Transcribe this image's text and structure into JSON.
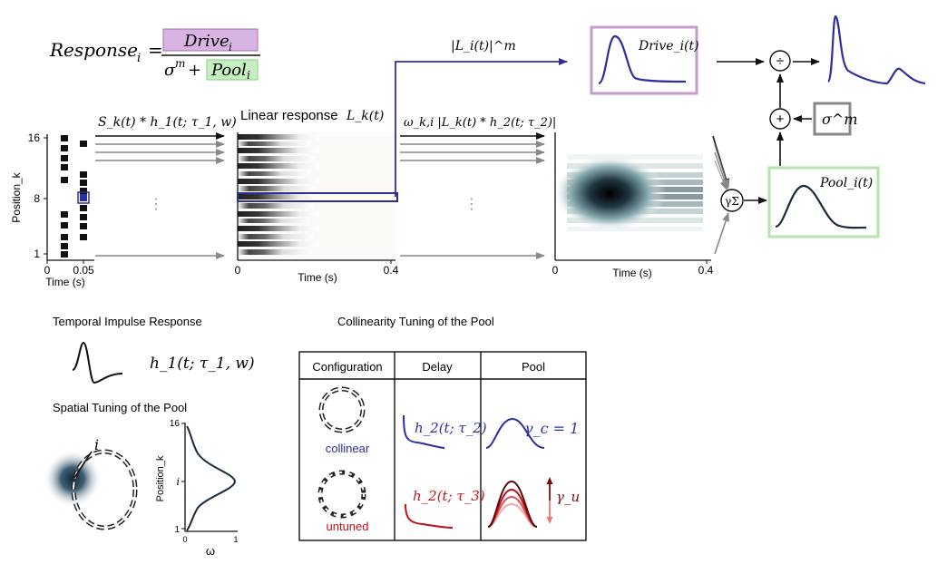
{
  "equation": {
    "lhs": "Response",
    "lhs_sub": "i",
    "equals": "=",
    "num": "Drive",
    "num_sub": "i",
    "den_sigma": "σ",
    "den_sigma_sup": "m",
    "den_plus": "+",
    "den_pool": "Pool",
    "den_pool_sub": "i"
  },
  "top_labels": {
    "conv1": "S_k(t) * h_1(t; τ_1, w)",
    "linear_title": "Linear response",
    "linear_sym": "L_k(t)",
    "power": "|L_i(t)|^m",
    "conv2": "ω_k,i |L_k(t) * h_2(t; τ_2)|",
    "drive_box": "Drive_i(t)",
    "pool_box": "Pool_i(t)",
    "sigma_box": "σ^m",
    "divide": "÷",
    "plus": "+",
    "gamma_sum": "γΣ"
  },
  "stimulus_plot": {
    "ylabel": "Position_k",
    "yticks": [
      "16",
      "8",
      "1"
    ],
    "xticks": [
      "0",
      "0.05"
    ],
    "xlabel": "Time (s)",
    "dots": "⋮"
  },
  "linear_plot": {
    "xticks": [
      "0",
      "0.4"
    ],
    "xlabel": "Time (s)",
    "dots": "⋮"
  },
  "pool_plot": {
    "xticks": [
      "0",
      "0.4"
    ],
    "xlabel": "Time (s)"
  },
  "temporal": {
    "title": "Temporal Impulse Response",
    "formula": "h_1(t; τ_1, w)"
  },
  "spatial": {
    "title": "Spatial Tuning of the Pool",
    "marker": "i",
    "ylabel": "Position_k",
    "yticks": [
      "16",
      "i",
      "1"
    ],
    "xticks": [
      "0",
      "1"
    ],
    "xlabel": "ω"
  },
  "collinearity": {
    "title": "Collinearity Tuning of the Pool",
    "headers": [
      "Configuration",
      "Delay",
      "Pool"
    ],
    "rows": [
      {
        "config": "collinear",
        "delay": "h_2(t; τ_2)",
        "pool": "γ_c = 1"
      },
      {
        "config": "untuned",
        "delay": "h_2(t; τ_3)",
        "pool": "γ_u"
      }
    ]
  },
  "colors": {
    "blue": "#2e2e9e",
    "red": "#c0141a",
    "purple": "#c49ccc",
    "purple_fill": "#d8b4e2",
    "green": "#b6e3b0",
    "green_fill": "#c6efbf",
    "gray": "#888888"
  }
}
